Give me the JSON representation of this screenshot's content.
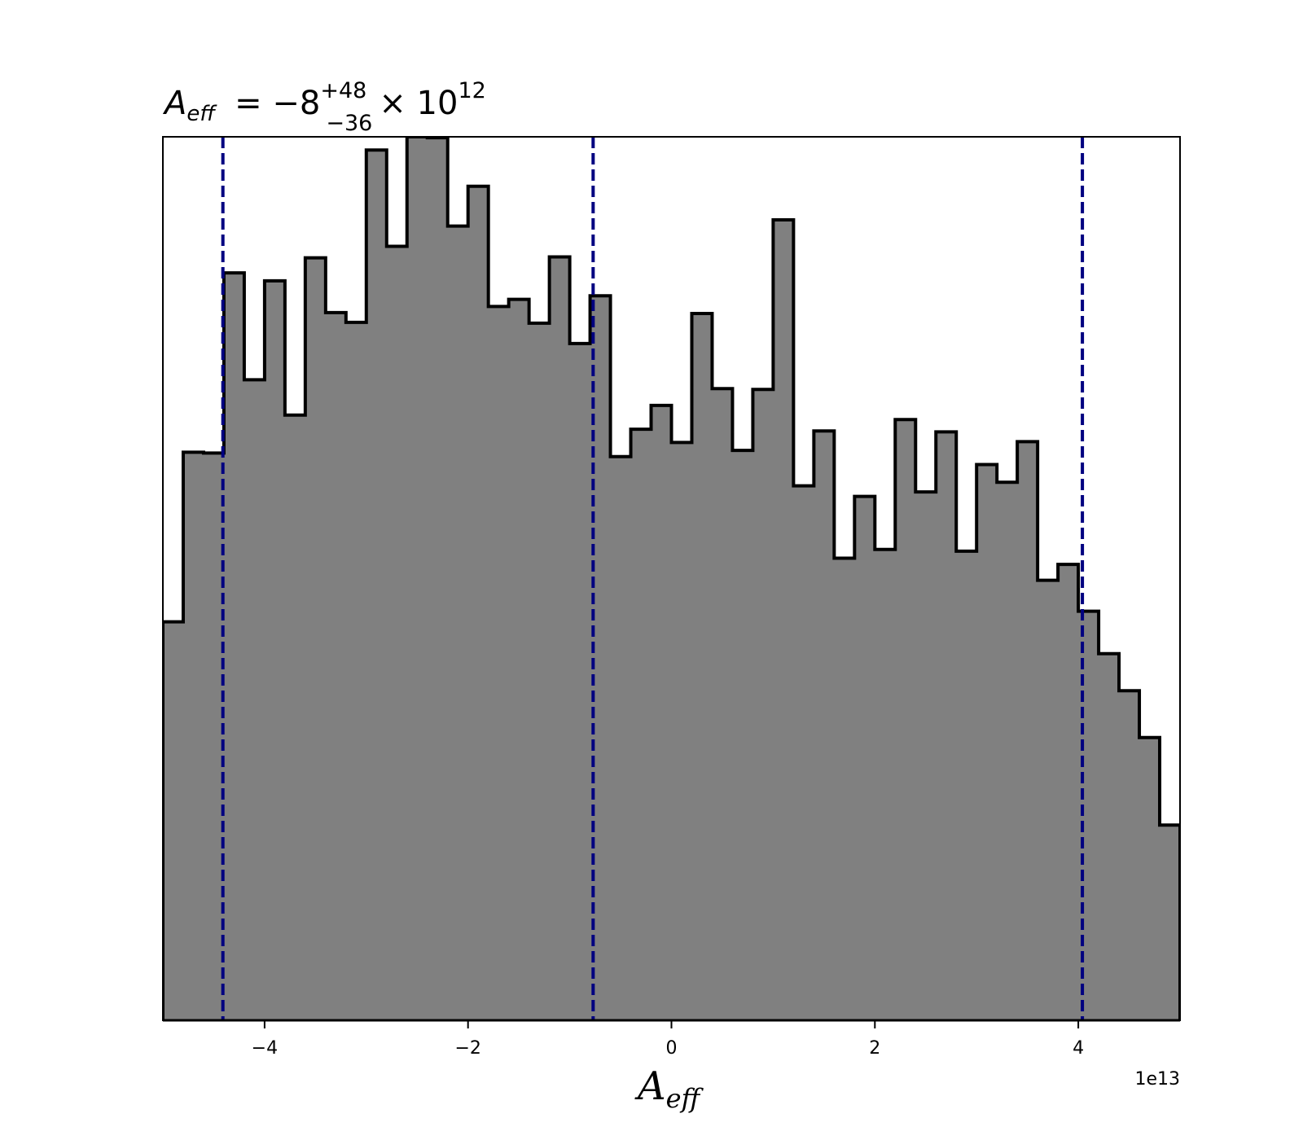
{
  "chart_data": {
    "type": "histogram",
    "title": {
      "symbol": "A",
      "subscript": "eff",
      "median": "= −8",
      "upper": "+48",
      "lower": "−36",
      "times": "× 10",
      "exponent": "12"
    },
    "xlabel": {
      "symbol": "A",
      "subscript": "eff"
    },
    "ylabel": "",
    "x_offset_label": "1e13",
    "xlim": [
      -5.0,
      5.0
    ],
    "ylim": [
      0,
      1000
    ],
    "x_ticks": [
      -4,
      -2,
      0,
      2,
      4
    ],
    "x_tick_labels": [
      "−4",
      "−2",
      "0",
      "2",
      "4"
    ],
    "bin_edges": [
      -5.0,
      -4.8,
      -4.6,
      -4.4,
      -4.2,
      -4.0,
      -3.8,
      -3.6,
      -3.4,
      -3.2,
      -3.0,
      -2.8,
      -2.6,
      -2.4,
      -2.2,
      -2.0,
      -1.8,
      -1.6,
      -1.4,
      -1.2,
      -1.0,
      -0.8,
      -0.6,
      -0.4,
      -0.2,
      0.0,
      0.2,
      0.4,
      0.6,
      0.8,
      1.0,
      1.2,
      1.4,
      1.6,
      1.8,
      2.0,
      2.2,
      2.4,
      2.6,
      2.8,
      3.0,
      3.2,
      3.4,
      3.6,
      3.8,
      4.0,
      4.2,
      4.4,
      4.6,
      4.8,
      5.0
    ],
    "counts": [
      451,
      643,
      642,
      846,
      725,
      837,
      685,
      863,
      801,
      790,
      985,
      876,
      1000,
      999,
      899,
      944,
      808,
      816,
      789,
      864,
      766,
      820,
      638,
      669,
      696,
      654,
      800,
      715,
      645,
      714,
      906,
      605,
      667,
      523,
      593,
      533,
      680,
      598,
      666,
      531,
      629,
      609,
      655,
      498,
      516,
      463,
      415,
      373,
      320,
      221
    ],
    "quantile_lines": [
      -4.41,
      -0.77,
      4.04
    ],
    "fill_color": "#808080",
    "edge_color": "#000000",
    "quantile_color": "#000080",
    "grid": false
  }
}
